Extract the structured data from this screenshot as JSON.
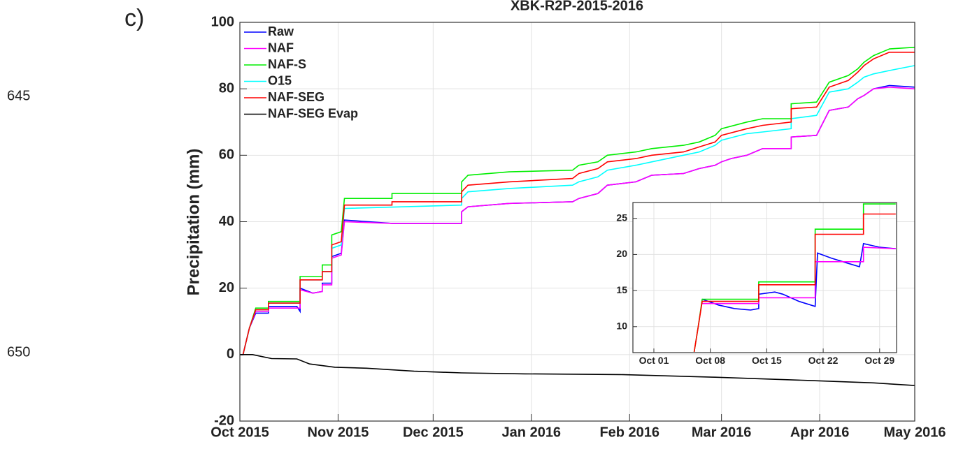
{
  "panel_label": "c)",
  "margin_numbers": [
    "645",
    "650"
  ],
  "chart_data": [
    {
      "type": "line",
      "title": "XBK-R2P-2015-2016",
      "ylabel": "Precipitation (mm)",
      "xlim": [
        0,
        213
      ],
      "ylim": [
        -20,
        100
      ],
      "xticks": [
        {
          "value": 0,
          "label": "Oct 2015"
        },
        {
          "value": 31,
          "label": "Nov 2015"
        },
        {
          "value": 61,
          "label": "Dec 2015"
        },
        {
          "value": 92,
          "label": "Jan 2016"
        },
        {
          "value": 123,
          "label": "Feb 2016"
        },
        {
          "value": 152,
          "label": "Mar 2016"
        },
        {
          "value": 183,
          "label": "Apr 2016"
        },
        {
          "value": 213,
          "label": "May 2016"
        }
      ],
      "yticks": [
        -20,
        0,
        20,
        40,
        60,
        80,
        100
      ],
      "grid": true,
      "legend": "upper left",
      "series": [
        {
          "name": "Raw",
          "color": "#0000ff",
          "x": [
            0,
            1,
            3,
            5,
            9,
            9,
            18,
            19,
            19,
            23,
            26,
            26,
            29,
            29,
            32,
            33,
            48,
            70,
            70,
            72,
            85,
            105,
            107,
            113,
            116,
            125,
            130,
            140,
            145,
            150,
            152,
            155,
            160,
            165,
            174,
            174,
            182,
            186,
            192,
            195,
            197,
            200,
            205,
            213
          ],
          "values": [
            0,
            0,
            8,
            12.5,
            12.5,
            14.5,
            14.5,
            13,
            20,
            18.5,
            19,
            21.5,
            21.5,
            29.5,
            30.5,
            40.5,
            39.5,
            39.5,
            43,
            44.5,
            45.5,
            46,
            47,
            48.5,
            51,
            52,
            54,
            54.5,
            56,
            57,
            58,
            59,
            60,
            62,
            62,
            65.5,
            66,
            73.5,
            74.5,
            77,
            78,
            80,
            81,
            80.5
          ]
        },
        {
          "name": "NAF",
          "color": "#ff00ff",
          "x": [
            0,
            1,
            3,
            5,
            9,
            9,
            19,
            19,
            23,
            26,
            26,
            29,
            29,
            32,
            33,
            48,
            70,
            70,
            72,
            85,
            105,
            107,
            113,
            116,
            125,
            130,
            140,
            145,
            150,
            152,
            155,
            160,
            165,
            174,
            174,
            182,
            186,
            192,
            195,
            197,
            200,
            205,
            213
          ],
          "values": [
            0,
            0,
            8,
            13,
            13,
            14,
            14,
            19.5,
            18.5,
            19,
            21,
            21,
            29,
            30,
            40,
            39.5,
            39.5,
            43,
            44.5,
            45.5,
            46,
            47,
            48.5,
            51,
            52,
            54,
            54.5,
            56,
            57,
            58,
            59,
            60,
            62,
            62,
            65.5,
            66,
            73.5,
            74.5,
            77,
            78,
            80,
            80.5,
            80
          ]
        },
        {
          "name": "NAF-S",
          "color": "#00ee00",
          "x": [
            0,
            1,
            3,
            5,
            9,
            9,
            19,
            19,
            26,
            26,
            29,
            29,
            32,
            33,
            48,
            48,
            70,
            70,
            72,
            85,
            105,
            107,
            113,
            116,
            125,
            130,
            140,
            145,
            150,
            152,
            160,
            165,
            174,
            174,
            182,
            186,
            192,
            195,
            197,
            200,
            205,
            213
          ],
          "values": [
            0,
            0,
            8,
            14,
            14,
            16,
            16,
            23.5,
            23.5,
            27,
            27,
            36,
            37,
            47,
            47,
            48.5,
            48.5,
            52,
            54,
            55,
            55.5,
            57,
            58,
            60,
            61,
            62,
            63,
            64,
            66,
            68,
            70,
            71,
            71,
            75.5,
            76,
            82,
            84,
            86,
            88,
            90,
            92,
            92.5
          ]
        },
        {
          "name": "O15",
          "color": "#00ffff",
          "x": [
            0,
            1,
            3,
            5,
            9,
            9,
            19,
            19,
            26,
            26,
            29,
            29,
            32,
            33,
            70,
            70,
            72,
            85,
            105,
            107,
            113,
            116,
            125,
            130,
            140,
            145,
            150,
            152,
            160,
            165,
            174,
            174,
            182,
            186,
            192,
            195,
            197,
            200,
            205,
            213
          ],
          "values": [
            0,
            0,
            8,
            13.5,
            13.5,
            15.5,
            15.5,
            22.5,
            22.5,
            25,
            25,
            32,
            33,
            44,
            45,
            47,
            49,
            50,
            51,
            52,
            53.5,
            55.5,
            57,
            58,
            60,
            61,
            63,
            64.5,
            66.5,
            67,
            68,
            71,
            72,
            79,
            80,
            82,
            83.5,
            84.5,
            85.5,
            87
          ]
        },
        {
          "name": "NAF-SEG",
          "color": "#ff0000",
          "x": [
            0,
            1,
            3,
            5,
            9,
            9,
            19,
            19,
            26,
            26,
            29,
            29,
            32,
            33,
            48,
            48,
            70,
            70,
            72,
            85,
            105,
            107,
            113,
            116,
            125,
            130,
            140,
            145,
            150,
            152,
            160,
            165,
            174,
            174,
            182,
            186,
            192,
            195,
            197,
            200,
            205,
            213
          ],
          "values": [
            0,
            0,
            8,
            13.5,
            13.5,
            15.5,
            15.5,
            22.5,
            22.5,
            25,
            25,
            33,
            34,
            45,
            45,
            46,
            46,
            49,
            51,
            52,
            53,
            54.5,
            56,
            58,
            59,
            60,
            61,
            62.5,
            64,
            66,
            68,
            69,
            70,
            74,
            74.5,
            80.5,
            82.5,
            85,
            87,
            89,
            91,
            91
          ]
        },
        {
          "name": "NAF-SEG Evap",
          "color": "#000000",
          "x": [
            0,
            4,
            10,
            18,
            22,
            30,
            40,
            55,
            70,
            90,
            120,
            150,
            180,
            200,
            213
          ],
          "values": [
            0,
            0,
            -1.2,
            -1.3,
            -2.8,
            -3.8,
            -4.1,
            -5,
            -5.5,
            -5.8,
            -6,
            -6.8,
            -7.8,
            -8.5,
            -9.3
          ]
        }
      ]
    },
    {
      "type": "line",
      "xlim": [
        -2.6,
        30.1
      ],
      "ylim": [
        6.4,
        27.2
      ],
      "xticks": [
        {
          "value": 0,
          "label": "Oct 01"
        },
        {
          "value": 7,
          "label": "Oct 08"
        },
        {
          "value": 14,
          "label": "Oct 15"
        },
        {
          "value": 21,
          "label": "Oct 22"
        },
        {
          "value": 28,
          "label": "Oct 29"
        }
      ],
      "yticks": [
        10,
        15,
        20,
        25
      ],
      "grid": true,
      "series": [
        {
          "color": "#0000ff",
          "x": [
            6,
            8,
            10,
            12,
            13,
            13,
            15,
            16,
            18,
            20,
            20.3,
            22,
            24,
            25.5,
            26,
            28,
            30
          ],
          "values": [
            13.8,
            13,
            12.5,
            12.3,
            12.5,
            14.5,
            14.8,
            14.5,
            13.5,
            12.8,
            20.2,
            19.5,
            18.8,
            18.3,
            21.5,
            21,
            20.8
          ]
        },
        {
          "color": "#ff00ff",
          "x": [
            6,
            13,
            13,
            20,
            20,
            26,
            26,
            30
          ],
          "values": [
            13.2,
            13.2,
            14,
            14,
            19,
            19,
            21,
            20.8
          ]
        },
        {
          "color": "#00ee00",
          "x": [
            5,
            5.5,
            6,
            13,
            13,
            20,
            20,
            26,
            26,
            30
          ],
          "values": [
            6.5,
            10,
            13.8,
            13.8,
            16.2,
            16.2,
            23.5,
            23.5,
            27,
            27
          ]
        },
        {
          "color": "#ff0000",
          "x": [
            5,
            5.5,
            6,
            13,
            13,
            20,
            20,
            26,
            26,
            30
          ],
          "values": [
            6.5,
            10,
            13.5,
            13.5,
            15.8,
            15.8,
            22.8,
            22.8,
            25.6,
            25.6
          ]
        }
      ]
    }
  ]
}
